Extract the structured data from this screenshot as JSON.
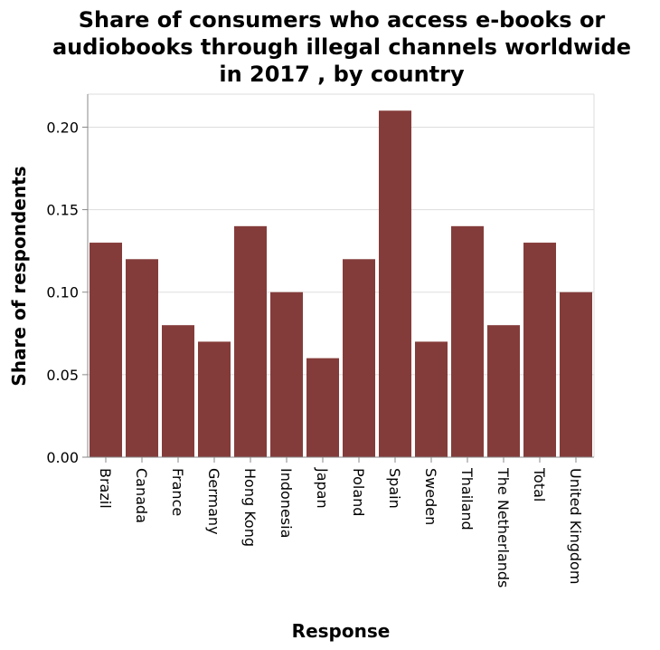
{
  "chart_data": {
    "type": "bar",
    "title": [
      "Share of consumers who access e-books or",
      "audiobooks through illegal channels worldwide",
      "in 2017 , by country"
    ],
    "xlabel": "Response",
    "ylabel": "Share of respondents",
    "categories": [
      "Brazil",
      "Canada",
      "France",
      "Germany",
      "Hong Kong",
      "Indonesia",
      "Japan",
      "Poland",
      "Spain",
      "Sweden",
      "Thailand",
      "The Netherlands",
      "Total",
      "United Kingdom"
    ],
    "values": [
      0.13,
      0.12,
      0.08,
      0.07,
      0.14,
      0.1,
      0.06,
      0.12,
      0.21,
      0.07,
      0.14,
      0.08,
      0.13,
      0.1
    ],
    "ylim": [
      0,
      0.22
    ],
    "yticks": [
      "0.00",
      "0.05",
      "0.10",
      "0.15",
      "0.20"
    ],
    "grid": true,
    "bar_color": "#843c3a"
  }
}
